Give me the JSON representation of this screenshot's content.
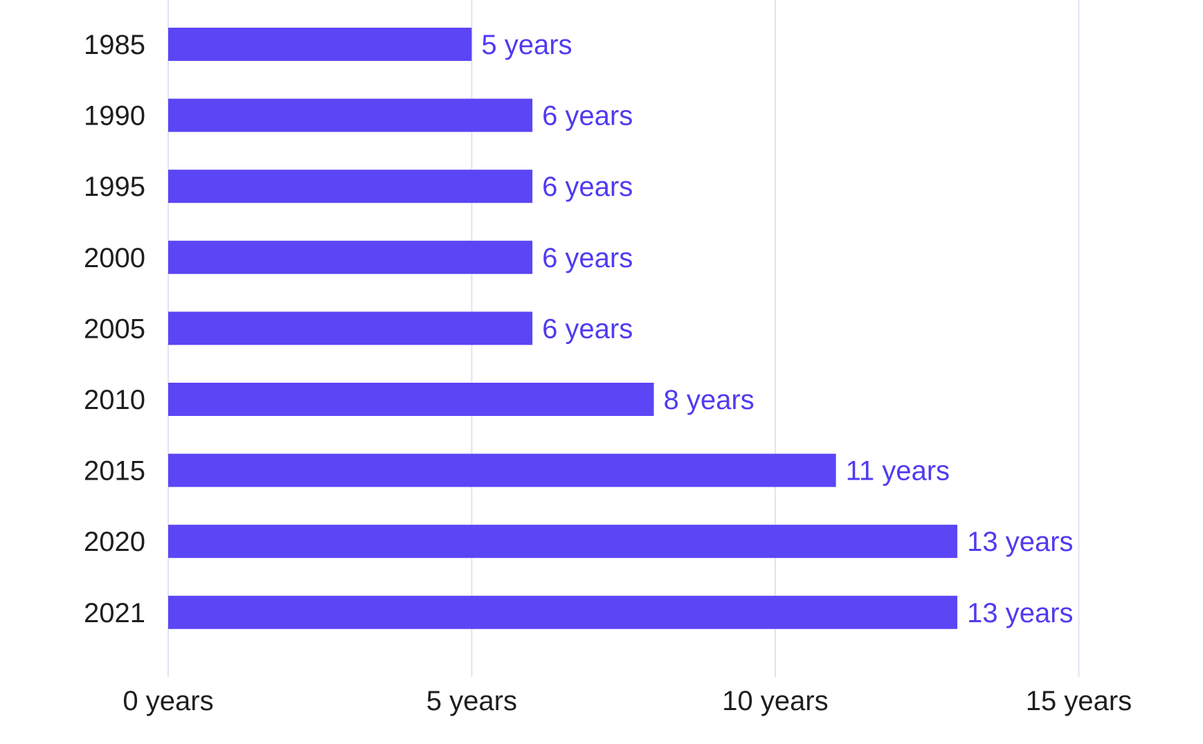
{
  "chart_data": {
    "type": "bar",
    "orientation": "horizontal",
    "categories": [
      "1985",
      "1990",
      "1995",
      "2000",
      "2005",
      "2010",
      "2015",
      "2020",
      "2021"
    ],
    "series": [
      {
        "values": [
          5,
          6,
          6,
          6,
          6,
          8,
          11,
          13,
          13
        ]
      }
    ],
    "data_labels": [
      "5 years",
      "6 years",
      "6 years",
      "6 years",
      "6 years",
      "8 years",
      "11 years",
      "13 years",
      "13 years"
    ],
    "x_ticks": [
      0,
      5,
      10,
      15
    ],
    "x_tick_labels": [
      "0 years",
      "5 years",
      "10 years",
      "15 years"
    ],
    "xlim": [
      0,
      15
    ],
    "title": "",
    "xlabel": "",
    "ylabel": "",
    "grid": "vertical",
    "legend": "none",
    "colors": {
      "bar": "#5b45f5",
      "data_label": "#4f3bf0",
      "grid": "#e3e1f2",
      "text": "#1e1e1e"
    }
  }
}
